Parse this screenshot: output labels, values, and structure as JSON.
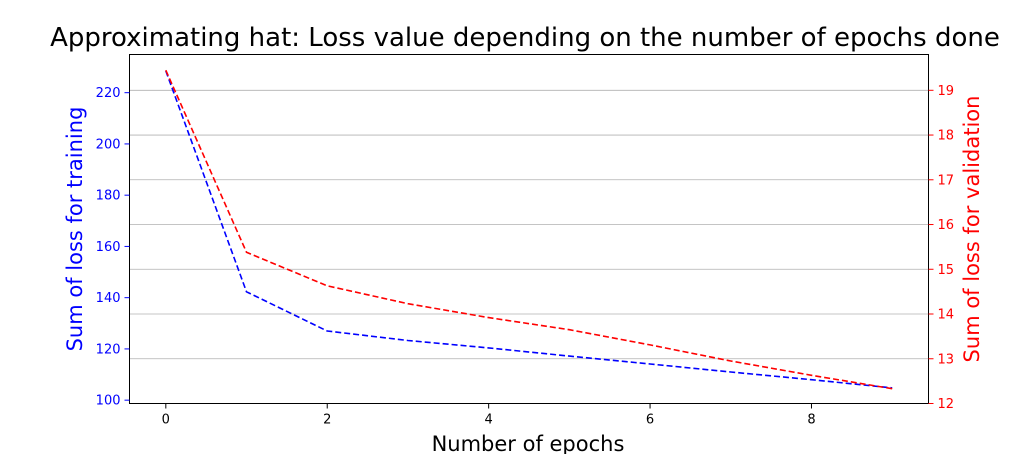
{
  "chart_data": {
    "type": "line",
    "title": "Approximating hat: Loss value depending on the number of epochs done",
    "xlabel": "Number of epochs",
    "ylabel_left": "Sum of loss for training",
    "ylabel_right": "Sum of loss for validation",
    "xlim": [
      -0.45,
      9.45
    ],
    "ylim_left": [
      98.7,
      234.9
    ],
    "ylim_right": [
      12.0,
      19.8
    ],
    "x_ticks": [
      0,
      2,
      4,
      6,
      8
    ],
    "y_ticks_left": [
      100,
      120,
      140,
      160,
      180,
      200,
      220
    ],
    "y_ticks_right": [
      12,
      13,
      14,
      15,
      16,
      17,
      18,
      19
    ],
    "grid": "horizontal, aligned to right axis ticks",
    "series": [
      {
        "name": "",
        "axis": "left",
        "color": "#0000ff",
        "linestyle": "dashed",
        "x": [
          0,
          1,
          2,
          3,
          4,
          5,
          6,
          7,
          8,
          9
        ],
        "values": [
          228.5,
          142.3,
          127.0,
          123.3,
          120.4,
          117.2,
          114.1,
          111.0,
          108.0,
          104.8
        ]
      },
      {
        "name": "",
        "axis": "right",
        "color": "#ff0000",
        "linestyle": "dashed",
        "x": [
          0,
          1,
          2,
          3,
          4,
          5,
          6,
          7,
          8,
          9
        ],
        "values": [
          19.45,
          15.38,
          14.63,
          14.23,
          13.92,
          13.65,
          13.31,
          12.95,
          12.63,
          12.33
        ]
      }
    ]
  }
}
